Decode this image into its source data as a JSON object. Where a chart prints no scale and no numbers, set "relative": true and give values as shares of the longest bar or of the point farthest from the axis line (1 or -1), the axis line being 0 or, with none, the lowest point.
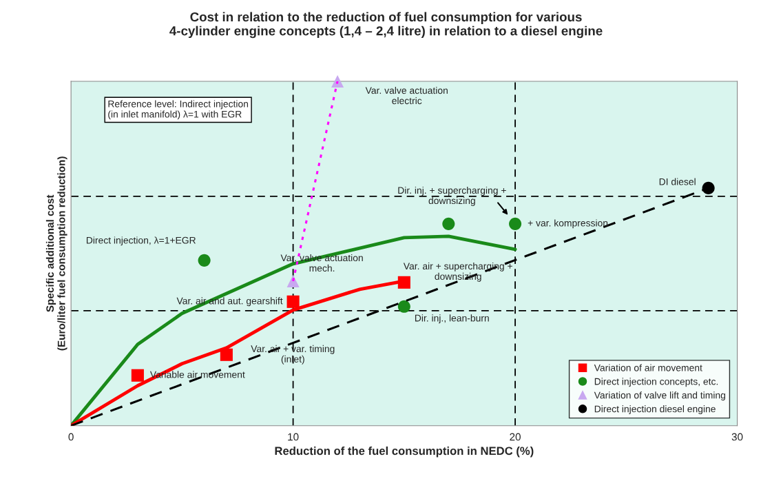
{
  "chart_data": {
    "type": "scatter",
    "relative": true,
    "title": "Cost in relation to the reduction of fuel consumption for various\n4-cylinder engine concepts (1,4 – 2,4 litre) in relation to a diesel engine",
    "xlabel": "Reduction of the fuel consumption in NEDC (%)",
    "ylabel": "Specific additional cost\n(Euro/liter fuel consumption reduction)",
    "xlim": [
      0,
      30
    ],
    "xticks": [
      0,
      10,
      20,
      30
    ],
    "tick_labels": "x",
    "grid": false,
    "legend": "bottom right",
    "ref_lines": [
      {
        "axis": "x",
        "value": 10,
        "line_style": "dashed",
        "color": "#000000"
      },
      {
        "axis": "x",
        "value": 20,
        "line_style": "dashed",
        "color": "#000000"
      },
      {
        "axis": "y",
        "value": 0.666,
        "line_style": "dashed",
        "color": "#000000"
      },
      {
        "axis": "y",
        "value": 0.334,
        "line_style": "dashed",
        "color": "#000000"
      }
    ],
    "series": [
      {
        "name": "Variation of air movement",
        "color": "#ff0000",
        "marker": "square",
        "x": [
          3,
          7,
          10,
          15
        ],
        "values": [
          0.146,
          0.206,
          0.36,
          0.416
        ]
      },
      {
        "name": "Direct injection concepts, etc.",
        "color": "#1a8a1a",
        "marker": "circle",
        "x": [
          6,
          15,
          17,
          20
        ],
        "values": [
          0.48,
          0.346,
          0.586,
          0.586
        ]
      },
      {
        "name": "Variation of valve lift and timing",
        "color": "#c8a8f0",
        "marker": "triangle",
        "x": [
          10,
          12
        ],
        "values": [
          0.42,
          1.0
        ]
      },
      {
        "name": "Direct injection diesel engine",
        "color": "#000000",
        "marker": "circle",
        "x": [
          28.7
        ],
        "values": [
          0.69
        ]
      },
      {
        "type": "line",
        "color": "#1a8a1a",
        "line_style": "solid",
        "x": [
          0,
          3,
          5,
          10,
          15,
          17,
          20
        ],
        "values": [
          0,
          0.236,
          0.326,
          0.47,
          0.546,
          0.55,
          0.512
        ]
      },
      {
        "type": "line",
        "color": "#ff0000",
        "line_style": "solid",
        "x": [
          0,
          3,
          5,
          7,
          10,
          13,
          15
        ],
        "values": [
          0,
          0.116,
          0.18,
          0.226,
          0.336,
          0.396,
          0.42
        ]
      },
      {
        "type": "line",
        "color": "#000000",
        "line_style": "dashed",
        "x": [
          0,
          28.7
        ],
        "values": [
          0,
          0.69
        ]
      },
      {
        "type": "line",
        "color": "#ff00ff",
        "line_style": "dotted",
        "x": [
          10,
          12
        ],
        "values": [
          0.42,
          1.0
        ]
      }
    ],
    "annotations": [
      "Reference level: Indirect injection\n(in inlet manifold) λ=1 with EGR",
      "Var. valve actuation\nelectric",
      {
        "text": "DI diesel",
        "x": 28.7,
        "y": 0.69
      },
      {
        "text": "Dir. inj. + supercharging +\ndownsizing",
        "x": 17,
        "y": 0.586
      },
      {
        "text": "+ var. kompression",
        "x": 20,
        "y": 0.586
      },
      "Direct injection, λ=1+EGR",
      {
        "text": "Var. valve actuation\nmech.",
        "x": 10,
        "y": 0.42
      },
      {
        "text": "Var. air and aut. gearshift",
        "x": 10,
        "y": 0.36
      },
      "Var. air + supercharging +\ndownsizing",
      {
        "text": "Dir. inj., lean-burn",
        "x": 15,
        "y": 0.346
      },
      "Var. air + var. timing\n(inlet)",
      {
        "text": "Variable air movement",
        "x": 3,
        "y": 0.146
      }
    ]
  }
}
